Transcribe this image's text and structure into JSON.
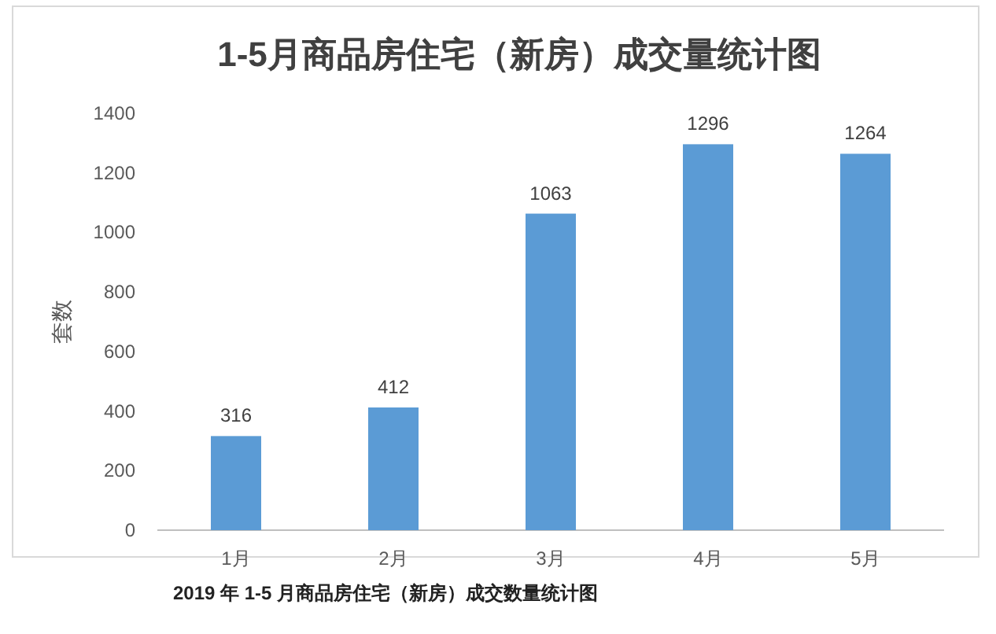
{
  "chart_data": {
    "type": "bar",
    "title": "1-5月商品房住宅（新房）成交量统计图",
    "ylabel": "套数",
    "categories": [
      "1月",
      "2月",
      "3月",
      "4月",
      "5月"
    ],
    "values": [
      316,
      412,
      1063,
      1296,
      1264
    ],
    "color": "#5b9bd5",
    "ylim": [
      0,
      1400
    ],
    "yticks": [
      0,
      200,
      400,
      600,
      800,
      1000,
      1200,
      1400
    ],
    "data_labels": true,
    "annotations": [
      "2019 年 1-5 月商品房住宅（新房）成交数量统计图"
    ]
  }
}
